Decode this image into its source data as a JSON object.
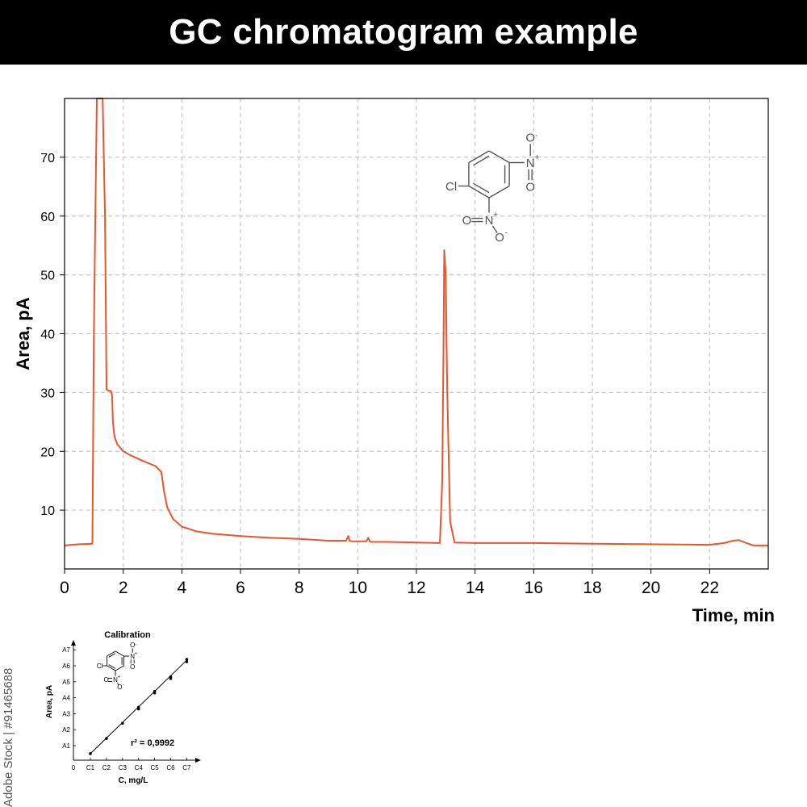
{
  "header": {
    "title": "GC chromatogram example"
  },
  "watermark": {
    "text": "Adobe Stock | #91465688"
  },
  "molecule": {
    "cl_label": "Cl",
    "n_label": "N",
    "plus": "+",
    "o_label": "O",
    "minus": "-"
  },
  "colors": {
    "trace": "#e8552f",
    "grid": "#c8c8c8",
    "axis": "#000000",
    "molecule": "#555555"
  },
  "chart_data": [
    {
      "type": "line",
      "title": "",
      "xlabel": "Time, min",
      "ylabel": "Area, pA",
      "xlim": [
        0,
        24
      ],
      "ylim": [
        0,
        80
      ],
      "x_ticks": [
        0,
        2,
        4,
        6,
        8,
        10,
        12,
        14,
        16,
        18,
        20,
        22
      ],
      "x_tick_labels": [
        "0",
        "2",
        "4",
        "6",
        "8",
        "10",
        "12",
        "14",
        "16",
        "18",
        "20",
        "22"
      ],
      "y_ticks": [
        10,
        20,
        30,
        40,
        50,
        60,
        70
      ],
      "y_tick_labels": [
        "10",
        "20",
        "30",
        "40",
        "50",
        "60",
        "70"
      ],
      "grid": true,
      "series": [
        {
          "x": [
            0,
            0.5,
            0.95,
            1.0,
            1.1,
            1.2,
            1.3,
            1.38,
            1.43,
            1.5,
            1.58,
            1.62,
            1.65,
            1.7,
            1.8,
            2.0,
            2.3,
            2.7,
            3.1,
            3.3,
            3.4,
            3.5,
            3.7,
            4.0,
            4.5,
            5,
            6,
            7,
            8,
            9,
            9.6,
            9.68,
            9.72,
            9.8,
            10.3,
            10.36,
            10.42,
            11,
            12,
            12.8,
            12.88,
            12.92,
            12.95,
            13.0,
            13.05,
            13.15,
            13.3,
            14,
            16,
            18,
            20,
            22,
            22.5,
            22.8,
            23.0,
            23.2,
            23.5,
            24
          ],
          "y": [
            4.0,
            4.2,
            4.3,
            40,
            80,
            80,
            80,
            60,
            30.5,
            30.3,
            30.3,
            29.5,
            25,
            22.5,
            21.2,
            20,
            19.2,
            18.3,
            17.5,
            16.5,
            13,
            10.5,
            8.5,
            7.2,
            6.4,
            6.0,
            5.6,
            5.3,
            5.1,
            4.8,
            4.8,
            5.6,
            4.8,
            4.7,
            4.7,
            5.3,
            4.6,
            4.6,
            4.5,
            4.4,
            15,
            35,
            54.2,
            50,
            30,
            8,
            4.5,
            4.4,
            4.4,
            4.3,
            4.2,
            4.1,
            4.4,
            4.8,
            4.9,
            4.5,
            4.0,
            4.0
          ]
        }
      ]
    },
    {
      "type": "scatter",
      "title": "Calibration",
      "xlabel": "C, mg/L",
      "ylabel": "Area, pA",
      "origin_label": "0",
      "x_tick_labels": [
        "C1",
        "C2",
        "C3",
        "C4",
        "C5",
        "C6",
        "C7"
      ],
      "y_tick_labels": [
        "A1",
        "A2",
        "A3",
        "A4",
        "A5",
        "A6",
        "A7"
      ],
      "annotation": "r² = 0,9992",
      "series": [
        {
          "x": [
            1,
            2,
            3,
            4,
            4,
            5,
            5,
            6,
            6,
            7,
            7
          ],
          "y": [
            0.5,
            1.45,
            2.4,
            3.3,
            3.4,
            4.3,
            4.4,
            5.2,
            5.3,
            6.25,
            6.4
          ]
        }
      ]
    }
  ]
}
